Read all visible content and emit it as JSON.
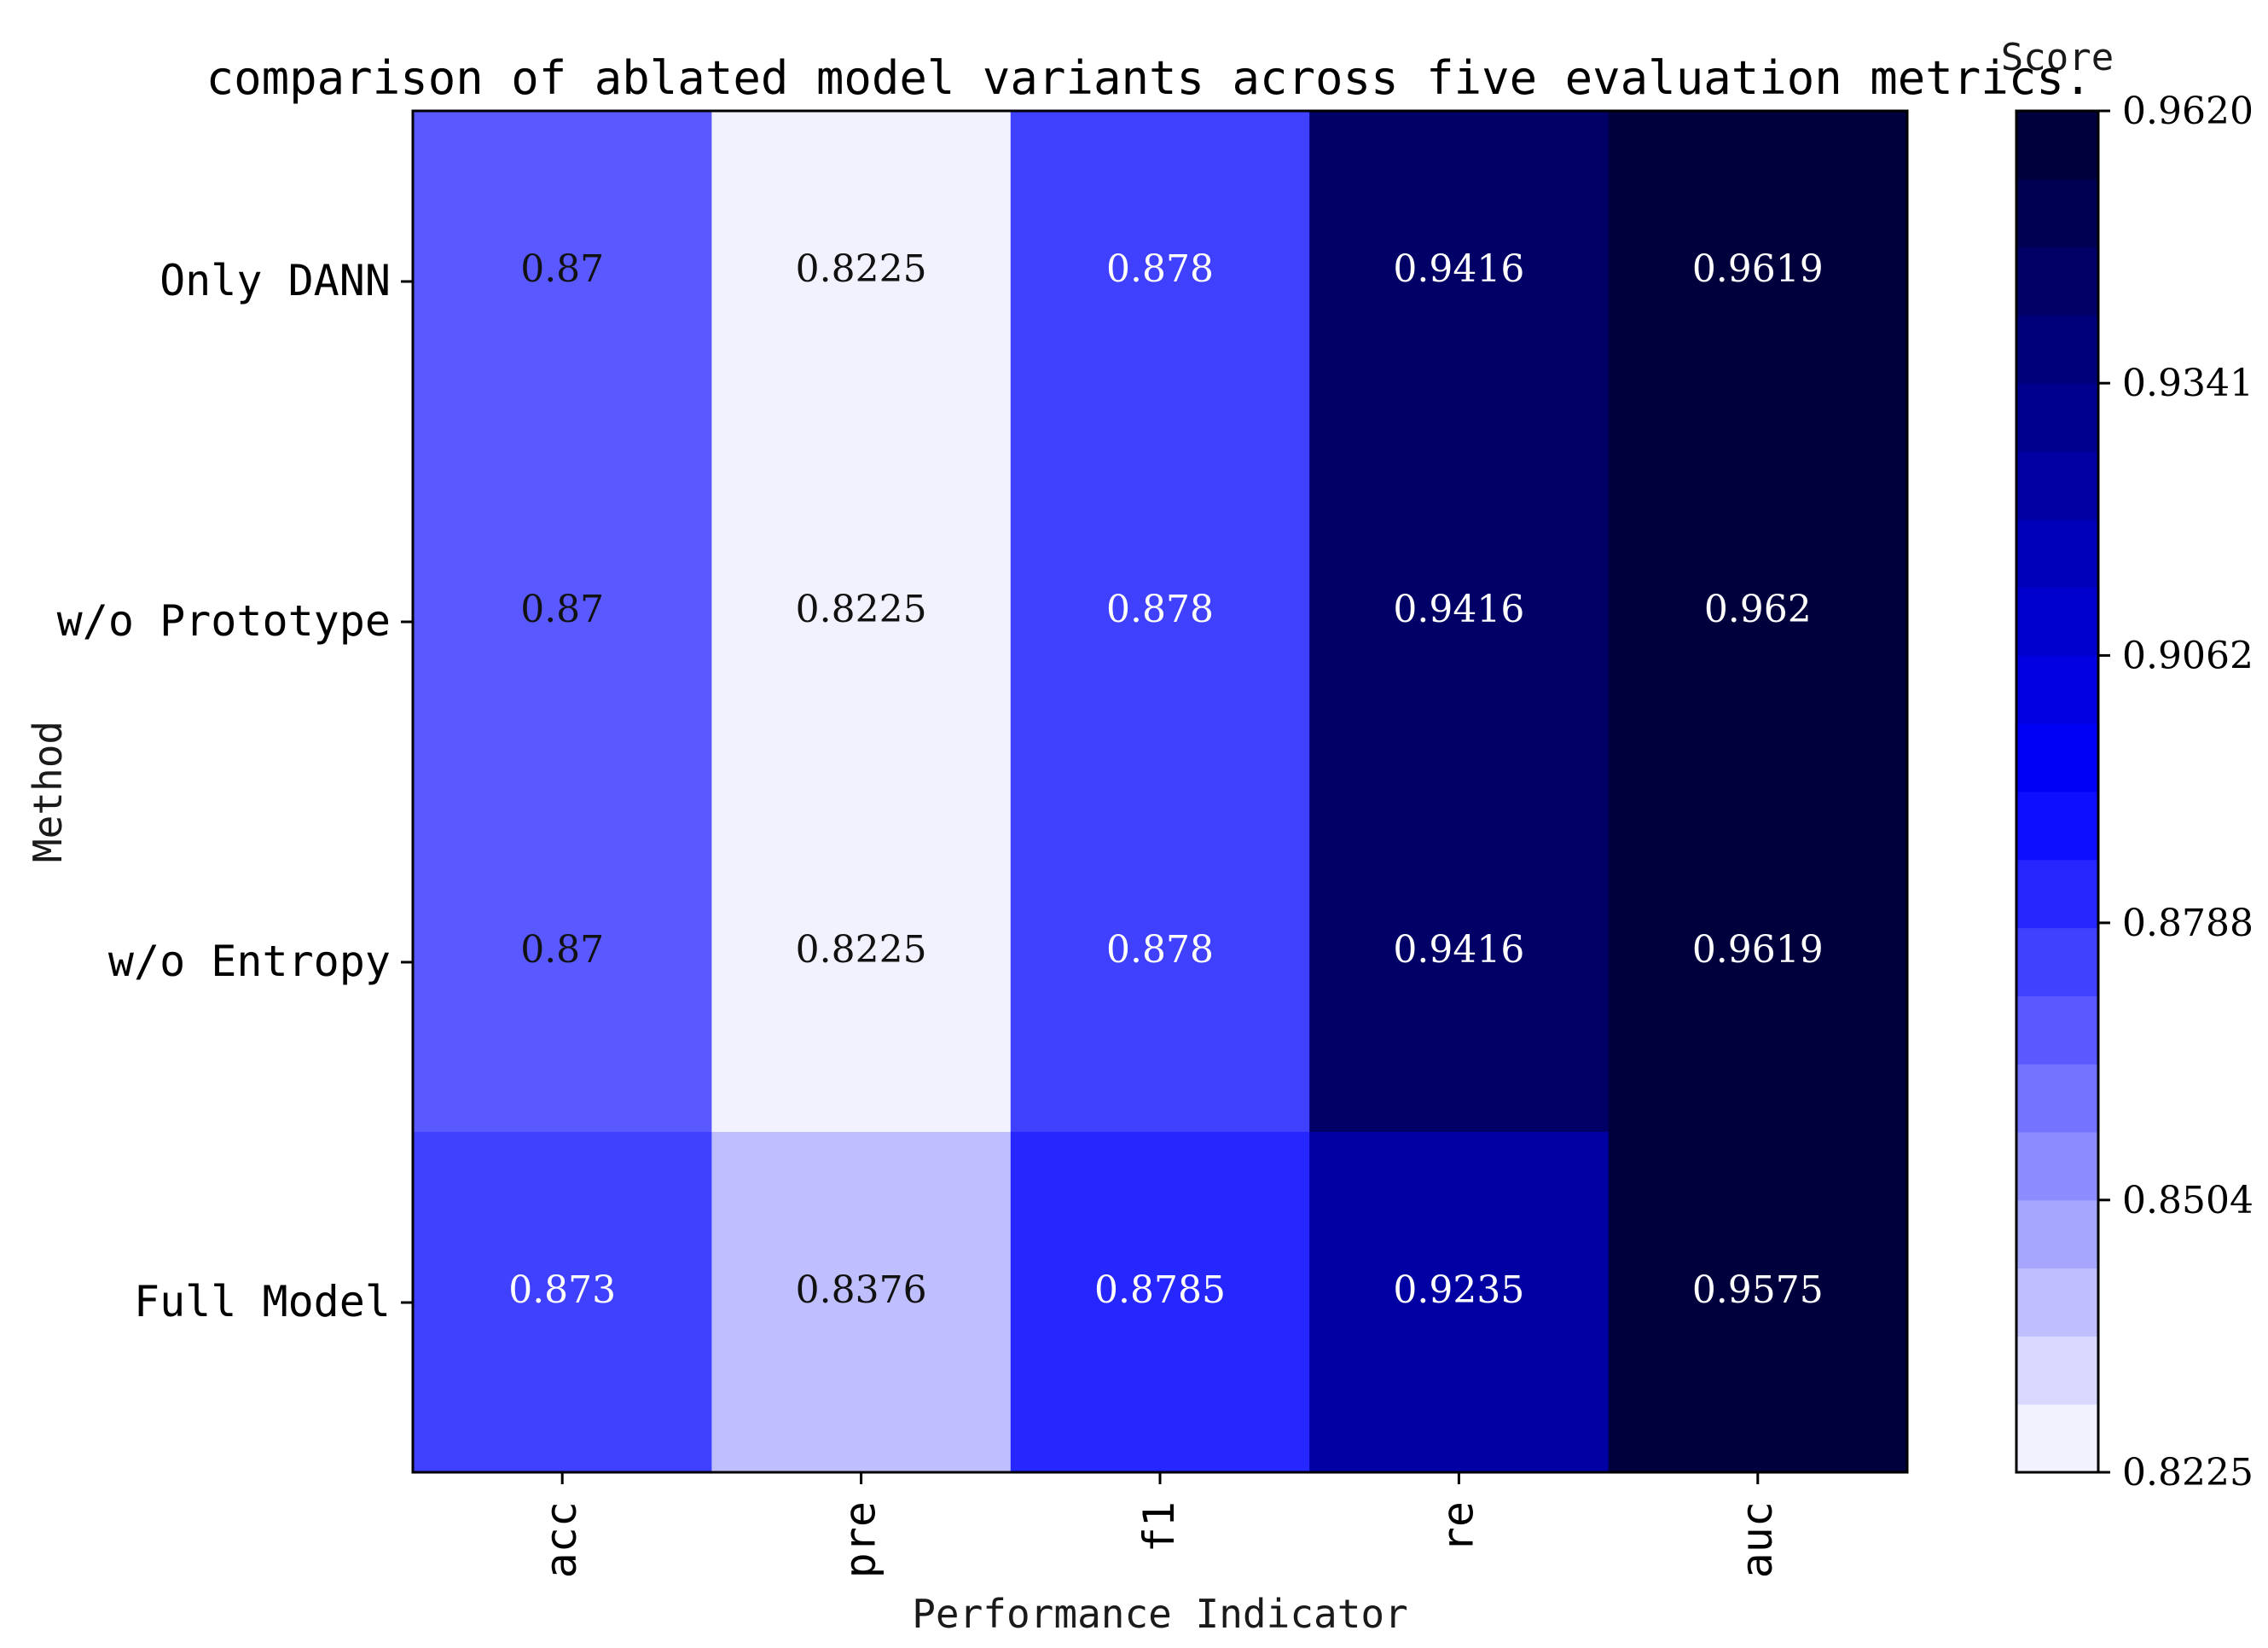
{
  "chart_data": {
    "type": "heatmap",
    "title": "comparison of ablated model variants across five evaluation metrics.",
    "xlabel": "Performance Indicator",
    "ylabel": "Method",
    "rows": [
      "Only DANN",
      "w/o Prototype",
      "w/o Entropy",
      "Full Model"
    ],
    "columns": [
      "acc",
      "pre",
      "f1",
      "re",
      "auc"
    ],
    "values": [
      [
        0.87,
        0.8225,
        0.878,
        0.9416,
        0.9619
      ],
      [
        0.87,
        0.8225,
        0.878,
        0.9416,
        0.962
      ],
      [
        0.87,
        0.8225,
        0.878,
        0.9416,
        0.9619
      ],
      [
        0.873,
        0.8376,
        0.8785,
        0.9235,
        0.9575
      ]
    ],
    "cell_labels": [
      [
        "0.87",
        "0.8225",
        "0.878",
        "0.9416",
        "0.9619"
      ],
      [
        "0.87",
        "0.8225",
        "0.878",
        "0.9416",
        "0.962"
      ],
      [
        "0.87",
        "0.8225",
        "0.878",
        "0.9416",
        "0.9619"
      ],
      [
        "0.873",
        "0.8376",
        "0.8785",
        "0.9235",
        "0.9575"
      ]
    ],
    "colorbar": {
      "label": "Score",
      "min": 0.8225,
      "max": 0.962,
      "ticks": [
        0.962,
        0.9341,
        0.9062,
        0.8788,
        0.8504,
        0.8225
      ],
      "tick_labels": [
        "0.9620",
        "0.9341",
        "0.9062",
        "0.8788",
        "0.8504",
        "0.8225"
      ],
      "levels": 20,
      "colors": [
        "#ffffff",
        "#0000ff",
        "#000033"
      ]
    }
  }
}
